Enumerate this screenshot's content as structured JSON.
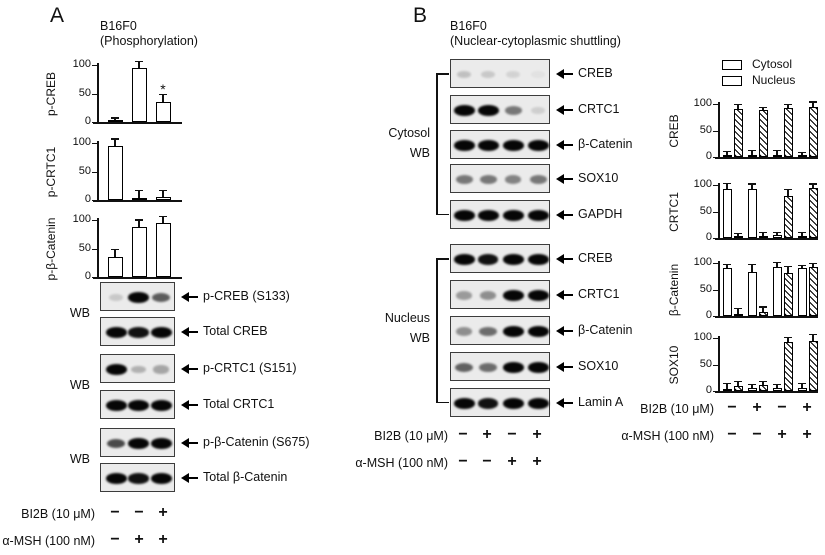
{
  "panelA": {
    "letter": "A",
    "title1": "B16F0",
    "title2": "(Phosphorylation)",
    "wb": "WB",
    "blot_groups": [
      {
        "blots": [
          {
            "label": "p-CREB  (S133)",
            "bands": [
              0.15,
              1,
              0.62
            ]
          },
          {
            "label": "Total CREB",
            "bands": [
              1,
              0.95,
              1
            ]
          }
        ]
      },
      {
        "blots": [
          {
            "label": "p-CRTC1  (S151)",
            "bands": [
              1,
              0.25,
              0.3
            ]
          },
          {
            "label": "Total CRTC1",
            "bands": [
              1,
              1,
              1
            ]
          }
        ]
      },
      {
        "blots": [
          {
            "label": "p-β-Catenin  (S675)",
            "bands": [
              0.7,
              1,
              1
            ]
          },
          {
            "label": "Total β-Catenin",
            "bands": [
              1,
              0.95,
              1
            ]
          }
        ]
      }
    ],
    "treatments": [
      {
        "label": "BI2B (10 μM)",
        "signs": [
          "−",
          "−",
          "+"
        ]
      },
      {
        "label": "α-MSH (100 nM)",
        "signs": [
          "−",
          "+",
          "+"
        ]
      }
    ]
  },
  "panelB": {
    "letter": "B",
    "title1": "B16F0",
    "title2": "(Nuclear-cytoplasmic shuttling)",
    "cytosol": {
      "label": "Cytosol",
      "wb": "WB",
      "blots": [
        {
          "label": "CREB",
          "bands": [
            0.18,
            0.15,
            0.1,
            0.04
          ]
        },
        {
          "label": "CRTC1",
          "bands": [
            1,
            1,
            0.5,
            0.12
          ]
        },
        {
          "label": "β-Catenin",
          "bands": [
            1,
            1,
            1,
            1
          ]
        },
        {
          "label": "SOX10",
          "bands": [
            0.5,
            0.5,
            0.45,
            0.5
          ]
        },
        {
          "label": "GAPDH",
          "bands": [
            1,
            1,
            1,
            1
          ]
        }
      ]
    },
    "nucleus": {
      "label": "Nucleus",
      "wb": "WB",
      "blots": [
        {
          "label": "CREB",
          "bands": [
            1,
            0.95,
            1,
            1
          ]
        },
        {
          "label": "CRTC1",
          "bands": [
            0.35,
            0.4,
            1,
            1
          ]
        },
        {
          "label": "β-Catenin",
          "bands": [
            0.4,
            0.55,
            1,
            1
          ]
        },
        {
          "label": "SOX10",
          "bands": [
            0.6,
            0.55,
            1,
            1
          ]
        },
        {
          "label": "Lamin A",
          "bands": [
            1,
            0.95,
            1,
            1
          ]
        }
      ]
    },
    "treatments": [
      {
        "label": "BI2B (10 μM)",
        "signs": [
          "−",
          "+",
          "−",
          "+"
        ]
      },
      {
        "label": "α-MSH (100 nM)",
        "signs": [
          "−",
          "−",
          "+",
          "+"
        ]
      }
    ]
  },
  "legend": {
    "items": [
      {
        "label": "Cytosol",
        "pattern": "open"
      },
      {
        "label": "Nucleus",
        "pattern": "hatched"
      }
    ]
  },
  "chart_data": [
    {
      "id": "A-p-CREB",
      "panel": "A",
      "type": "bar",
      "ylabel": "p-CREB",
      "ylim": [
        0,
        110
      ],
      "yticks": [
        0,
        50,
        100
      ],
      "categories": [
        "BI2B−/αMSH−",
        "BI2B−/αMSH+",
        "BI2B+/αMSH+"
      ],
      "values": [
        3,
        95,
        35
      ],
      "errors": [
        5,
        12,
        15
      ],
      "sig": [
        "",
        "",
        "*"
      ]
    },
    {
      "id": "A-p-CRTC1",
      "panel": "A",
      "type": "bar",
      "ylabel": "p-CRTC1",
      "ylim": [
        0,
        110
      ],
      "yticks": [
        0,
        50,
        100
      ],
      "categories": [
        "BI2B−/αMSH−",
        "BI2B−/αMSH+",
        "BI2B+/αMSH+"
      ],
      "values": [
        95,
        2,
        5
      ],
      "errors": [
        13,
        16,
        13
      ],
      "sig": [
        "",
        "",
        ""
      ]
    },
    {
      "id": "A-p-b-Catenin",
      "panel": "A",
      "type": "bar",
      "ylabel": "p-β-Catenin",
      "ylim": [
        0,
        110
      ],
      "yticks": [
        0,
        50,
        100
      ],
      "categories": [
        "BI2B−/αMSH−",
        "BI2B−/αMSH+",
        "BI2B+/αMSH+"
      ],
      "values": [
        35,
        88,
        95
      ],
      "errors": [
        15,
        13,
        12
      ],
      "sig": [
        "",
        "",
        ""
      ]
    },
    {
      "id": "B-CREB",
      "panel": "B",
      "type": "bar",
      "ylabel": "CREB",
      "ylim": [
        0,
        110
      ],
      "yticks": [
        0,
        50,
        100
      ],
      "categories": [
        "BI2B−/αMSH−",
        "BI2B+/αMSH−",
        "BI2B−/αMSH+",
        "BI2B+/αMSH+"
      ],
      "series": [
        {
          "name": "Cytosol",
          "values": [
            3,
            4,
            4,
            3
          ],
          "errors": [
            9,
            10,
            9,
            7
          ]
        },
        {
          "name": "Nucleus",
          "values": [
            90,
            88,
            92,
            95
          ],
          "errors": [
            10,
            7,
            8,
            10
          ]
        }
      ]
    },
    {
      "id": "B-CRTC1",
      "panel": "B",
      "type": "bar",
      "ylabel": "CRTC1",
      "ylim": [
        0,
        110
      ],
      "yticks": [
        0,
        50,
        100
      ],
      "categories": [
        "BI2B−/αMSH−",
        "BI2B+/αMSH−",
        "BI2B−/αMSH+",
        "BI2B+/αMSH+"
      ],
      "series": [
        {
          "name": "Cytosol",
          "values": [
            92,
            93,
            6,
            2
          ],
          "errors": [
            12,
            10,
            6,
            9
          ]
        },
        {
          "name": "Nucleus",
          "values": [
            3,
            4,
            80,
            95
          ],
          "errors": [
            6,
            8,
            13,
            8
          ]
        }
      ]
    },
    {
      "id": "B-b-Catenin",
      "panel": "B",
      "type": "bar",
      "ylabel": "β-Catenin",
      "ylim": [
        0,
        110
      ],
      "yticks": [
        0,
        50,
        100
      ],
      "categories": [
        "BI2B−/αMSH−",
        "BI2B+/αMSH−",
        "BI2B−/αMSH+",
        "BI2B+/αMSH+"
      ],
      "series": [
        {
          "name": "Cytosol",
          "values": [
            90,
            83,
            92,
            90
          ],
          "errors": [
            8,
            15,
            10,
            6
          ]
        },
        {
          "name": "Nucleus",
          "values": [
            3,
            8,
            82,
            92
          ],
          "errors": [
            13,
            10,
            12,
            8
          ]
        }
      ]
    },
    {
      "id": "B-SOX10",
      "panel": "B",
      "type": "bar",
      "ylabel": "SOX10",
      "ylim": [
        0,
        110
      ],
      "yticks": [
        0,
        50,
        100
      ],
      "categories": [
        "BI2B−/αMSH−",
        "BI2B+/αMSH−",
        "BI2B−/αMSH+",
        "BI2B+/αMSH+"
      ],
      "series": [
        {
          "name": "Cytosol",
          "values": [
            4,
            6,
            5,
            5
          ],
          "errors": [
            12,
            8,
            9,
            11
          ]
        },
        {
          "name": "Nucleus",
          "values": [
            9,
            11,
            92,
            95
          ],
          "errors": [
            10,
            8,
            10,
            12
          ]
        }
      ]
    }
  ]
}
